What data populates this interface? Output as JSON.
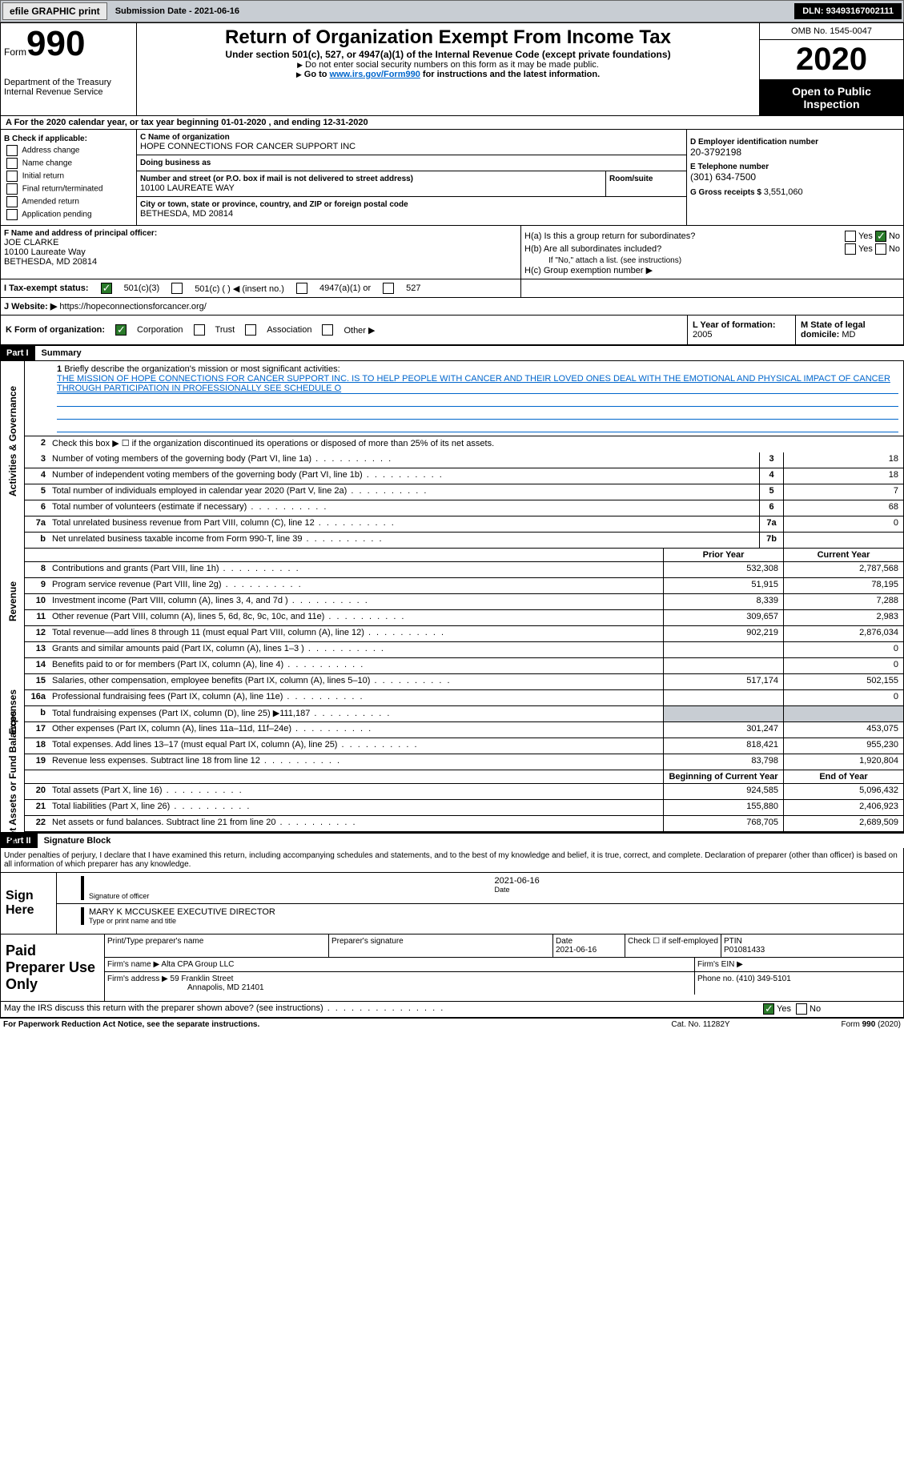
{
  "topbar": {
    "efile": "efile GRAPHIC print",
    "submission_label": "Submission Date - ",
    "submission_date": "2021-06-16",
    "dln_label": "DLN: ",
    "dln": "93493167002111"
  },
  "header": {
    "form_prefix": "Form",
    "form_num": "990",
    "dept": "Department of the Treasury\nInternal Revenue Service",
    "title": "Return of Organization Exempt From Income Tax",
    "subtitle": "Under section 501(c), 527, or 4947(a)(1) of the Internal Revenue Code (except private foundations)",
    "instr1": "Do not enter social security numbers on this form as it may be made public.",
    "instr2_pre": "Go to ",
    "instr2_link": "www.irs.gov/Form990",
    "instr2_post": " for instructions and the latest information.",
    "omb": "OMB No. 1545-0047",
    "year": "2020",
    "open": "Open to Public Inspection"
  },
  "section_a": "A For the 2020 calendar year, or tax year beginning 01-01-2020   , and ending 12-31-2020",
  "col_b": {
    "header": "B Check if applicable:",
    "items": [
      "Address change",
      "Name change",
      "Initial return",
      "Final return/terminated",
      "Amended return",
      "Application pending"
    ]
  },
  "col_c": {
    "name_label": "C Name of organization",
    "name": "HOPE CONNECTIONS FOR CANCER SUPPORT INC",
    "dba_label": "Doing business as",
    "dba": "",
    "street_label": "Number and street (or P.O. box if mail is not delivered to street address)",
    "street": "10100 LAUREATE WAY",
    "room_label": "Room/suite",
    "city_label": "City or town, state or province, country, and ZIP or foreign postal code",
    "city": "BETHESDA, MD  20814"
  },
  "col_d": {
    "ein_label": "D Employer identification number",
    "ein": "20-3792198",
    "phone_label": "E Telephone number",
    "phone": "(301) 634-7500",
    "receipts_label": "G Gross receipts $ ",
    "receipts": "3,551,060"
  },
  "officer": {
    "label": "F Name and address of principal officer:",
    "name": "JOE CLARKE",
    "street": "10100 Laureate Way",
    "city": "BETHESDA, MD  20814"
  },
  "h": {
    "a_label": "H(a)  Is this a group return for subordinates?",
    "b_label": "H(b)  Are all subordinates included?",
    "b_note": "If \"No,\" attach a list. (see instructions)",
    "c_label": "H(c)  Group exemption number ▶",
    "yes": "Yes",
    "no": "No"
  },
  "tax_status": {
    "label": "I  Tax-exempt status:",
    "opts": [
      "501(c)(3)",
      "501(c) (  ) ◀ (insert no.)",
      "4947(a)(1) or",
      "527"
    ]
  },
  "website": {
    "label": "J  Website: ▶",
    "url": "https://hopeconnectionsforcancer.org/"
  },
  "form_org": {
    "label": "K Form of organization:",
    "opts": [
      "Corporation",
      "Trust",
      "Association",
      "Other ▶"
    ]
  },
  "year_formation": {
    "label": "L Year of formation: ",
    "val": "2005"
  },
  "domicile": {
    "label": "M State of legal domicile: ",
    "val": "MD"
  },
  "part1": {
    "header": "Part I",
    "title": "Summary",
    "mission_label": "Briefly describe the organization's mission or most significant activities:",
    "mission": "THE MISSION OF HOPE CONNECTIONS FOR CANCER SUPPORT INC. IS TO HELP PEOPLE WITH CANCER AND THEIR LOVED ONES DEAL WITH THE EMOTIONAL AND PHYSICAL IMPACT OF CANCER THROUGH PARTICIPATION IN PROFESSIONALLY SEE SCHEDULE O",
    "line2": "Check this box ▶ ☐  if the organization discontinued its operations or disposed of more than 25% of its net assets.",
    "sides": {
      "gov": "Activities & Governance",
      "rev": "Revenue",
      "exp": "Expenses",
      "net": "Net Assets or Fund Balances"
    },
    "col_prior": "Prior Year",
    "col_current": "Current Year",
    "col_begin": "Beginning of Current Year",
    "col_end": "End of Year",
    "lines_gov": [
      {
        "n": "3",
        "t": "Number of voting members of the governing body (Part VI, line 1a)",
        "box": "3",
        "v": "18"
      },
      {
        "n": "4",
        "t": "Number of independent voting members of the governing body (Part VI, line 1b)",
        "box": "4",
        "v": "18"
      },
      {
        "n": "5",
        "t": "Total number of individuals employed in calendar year 2020 (Part V, line 2a)",
        "box": "5",
        "v": "7"
      },
      {
        "n": "6",
        "t": "Total number of volunteers (estimate if necessary)",
        "box": "6",
        "v": "68"
      },
      {
        "n": "7a",
        "t": "Total unrelated business revenue from Part VIII, column (C), line 12",
        "box": "7a",
        "v": "0"
      },
      {
        "n": "b",
        "t": "Net unrelated business taxable income from Form 990-T, line 39",
        "box": "7b",
        "v": ""
      }
    ],
    "lines_rev": [
      {
        "n": "8",
        "t": "Contributions and grants (Part VIII, line 1h)",
        "p": "532,308",
        "c": "2,787,568"
      },
      {
        "n": "9",
        "t": "Program service revenue (Part VIII, line 2g)",
        "p": "51,915",
        "c": "78,195"
      },
      {
        "n": "10",
        "t": "Investment income (Part VIII, column (A), lines 3, 4, and 7d )",
        "p": "8,339",
        "c": "7,288"
      },
      {
        "n": "11",
        "t": "Other revenue (Part VIII, column (A), lines 5, 6d, 8c, 9c, 10c, and 11e)",
        "p": "309,657",
        "c": "2,983"
      },
      {
        "n": "12",
        "t": "Total revenue—add lines 8 through 11 (must equal Part VIII, column (A), line 12)",
        "p": "902,219",
        "c": "2,876,034"
      }
    ],
    "lines_exp": [
      {
        "n": "13",
        "t": "Grants and similar amounts paid (Part IX, column (A), lines 1–3 )",
        "p": "",
        "c": "0"
      },
      {
        "n": "14",
        "t": "Benefits paid to or for members (Part IX, column (A), line 4)",
        "p": "",
        "c": "0"
      },
      {
        "n": "15",
        "t": "Salaries, other compensation, employee benefits (Part IX, column (A), lines 5–10)",
        "p": "517,174",
        "c": "502,155"
      },
      {
        "n": "16a",
        "t": "Professional fundraising fees (Part IX, column (A), line 11e)",
        "p": "",
        "c": "0"
      },
      {
        "n": "b",
        "t": "Total fundraising expenses (Part IX, column (D), line 25) ▶111,187",
        "p": "shade",
        "c": "shade"
      },
      {
        "n": "17",
        "t": "Other expenses (Part IX, column (A), lines 11a–11d, 11f–24e)",
        "p": "301,247",
        "c": "453,075"
      },
      {
        "n": "18",
        "t": "Total expenses. Add lines 13–17 (must equal Part IX, column (A), line 25)",
        "p": "818,421",
        "c": "955,230"
      },
      {
        "n": "19",
        "t": "Revenue less expenses. Subtract line 18 from line 12",
        "p": "83,798",
        "c": "1,920,804"
      }
    ],
    "lines_net": [
      {
        "n": "20",
        "t": "Total assets (Part X, line 16)",
        "p": "924,585",
        "c": "5,096,432"
      },
      {
        "n": "21",
        "t": "Total liabilities (Part X, line 26)",
        "p": "155,880",
        "c": "2,406,923"
      },
      {
        "n": "22",
        "t": "Net assets or fund balances. Subtract line 21 from line 20",
        "p": "768,705",
        "c": "2,689,509"
      }
    ]
  },
  "part2": {
    "header": "Part II",
    "title": "Signature Block",
    "decl": "Under penalties of perjury, I declare that I have examined this return, including accompanying schedules and statements, and to the best of my knowledge and belief, it is true, correct, and complete. Declaration of preparer (other than officer) is based on all information of which preparer has any knowledge.",
    "sign_here": "Sign Here",
    "sig_officer": "Signature of officer",
    "sig_date": "2021-06-16",
    "date_label": "Date",
    "name_title": "MARY K MCCUSKEE  EXECUTIVE DIRECTOR",
    "name_label": "Type or print name and title"
  },
  "preparer": {
    "title": "Paid Preparer Use Only",
    "h1": "Print/Type preparer's name",
    "h2": "Preparer's signature",
    "h3": "Date",
    "h3v": "2021-06-16",
    "h4": "Check ☐ if self-employed",
    "h5": "PTIN",
    "h5v": "P01081433",
    "firm_label": "Firm's name    ▶",
    "firm": "Alta CPA Group LLC",
    "ein_label": "Firm's EIN ▶",
    "addr_label": "Firm's address ▶",
    "addr1": "59 Franklin Street",
    "addr2": "Annapolis, MD  21401",
    "phone_label": "Phone no. ",
    "phone": "(410) 349-5101"
  },
  "discuss": {
    "text": "May the IRS discuss this return with the preparer shown above? (see instructions)",
    "yes": "Yes",
    "no": "No"
  },
  "footer": {
    "notice": "For Paperwork Reduction Act Notice, see the separate instructions.",
    "cat": "Cat. No. 11282Y",
    "form": "Form 990 (2020)"
  }
}
